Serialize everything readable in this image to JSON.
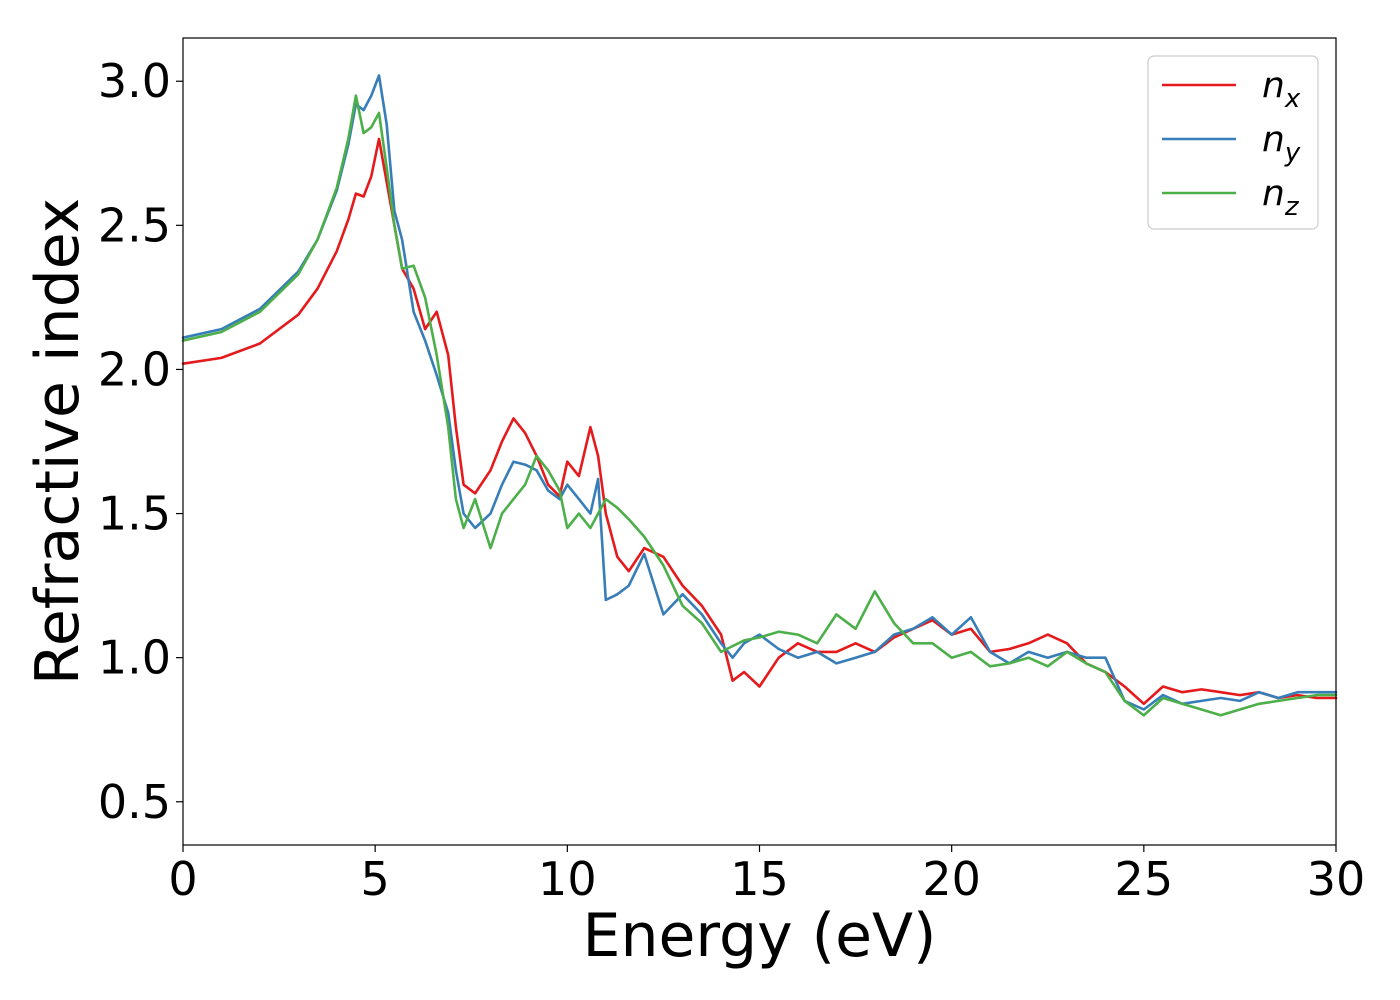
{
  "chart_data": {
    "type": "line",
    "xlabel": "Energy (eV)",
    "ylabel": "Refractive index",
    "xlim": [
      0,
      30
    ],
    "ylim": [
      0.35,
      3.15
    ],
    "xticks": [
      "0",
      "5",
      "10",
      "15",
      "20",
      "25",
      "30"
    ],
    "yticks": [
      "0.5",
      "1.0",
      "1.5",
      "2.0",
      "2.5",
      "3.0"
    ],
    "grid": false,
    "legend_position": "top-right",
    "series": [
      {
        "name": "n",
        "subscript": "x",
        "color": "#e41a1c",
        "x": [
          0,
          1,
          2,
          3,
          3.5,
          4,
          4.3,
          4.5,
          4.7,
          4.9,
          5.1,
          5.3,
          5.5,
          5.7,
          6.0,
          6.3,
          6.6,
          6.9,
          7.1,
          7.3,
          7.6,
          8.0,
          8.3,
          8.6,
          8.9,
          9.2,
          9.5,
          9.8,
          10.0,
          10.3,
          10.6,
          10.8,
          11.0,
          11.3,
          11.6,
          12.0,
          12.5,
          13.0,
          13.5,
          14.0,
          14.3,
          14.6,
          15.0,
          15.5,
          16.0,
          16.5,
          17.0,
          17.5,
          18.0,
          18.5,
          19.0,
          19.5,
          20.0,
          20.5,
          21.0,
          21.5,
          22.0,
          22.5,
          23.0,
          23.5,
          24.0,
          24.5,
          25.0,
          25.5,
          26.0,
          26.5,
          27.0,
          27.5,
          28.0,
          28.5,
          29.0,
          29.5,
          30.0
        ],
        "y": [
          2.02,
          2.04,
          2.09,
          2.19,
          2.28,
          2.41,
          2.52,
          2.61,
          2.6,
          2.67,
          2.8,
          2.65,
          2.5,
          2.35,
          2.28,
          2.14,
          2.2,
          2.05,
          1.8,
          1.6,
          1.57,
          1.65,
          1.75,
          1.83,
          1.78,
          1.7,
          1.6,
          1.56,
          1.68,
          1.63,
          1.8,
          1.7,
          1.5,
          1.35,
          1.3,
          1.38,
          1.35,
          1.25,
          1.18,
          1.08,
          0.92,
          0.95,
          0.9,
          1.0,
          1.05,
          1.02,
          1.02,
          1.05,
          1.02,
          1.07,
          1.1,
          1.13,
          1.08,
          1.1,
          1.02,
          1.03,
          1.05,
          1.08,
          1.05,
          0.98,
          0.95,
          0.9,
          0.84,
          0.9,
          0.88,
          0.89,
          0.88,
          0.87,
          0.88,
          0.86,
          0.87,
          0.86,
          0.86
        ]
      },
      {
        "name": "n",
        "subscript": "y",
        "color": "#377eb8",
        "x": [
          0,
          1,
          2,
          3,
          3.5,
          4,
          4.3,
          4.5,
          4.7,
          4.9,
          5.1,
          5.3,
          5.5,
          5.7,
          6.0,
          6.3,
          6.6,
          6.9,
          7.1,
          7.3,
          7.6,
          8.0,
          8.3,
          8.6,
          8.9,
          9.2,
          9.5,
          9.8,
          10.0,
          10.3,
          10.6,
          10.8,
          11.0,
          11.3,
          11.6,
          12.0,
          12.5,
          13.0,
          13.5,
          14.0,
          14.3,
          14.6,
          15.0,
          15.5,
          16.0,
          16.5,
          17.0,
          17.5,
          18.0,
          18.5,
          19.0,
          19.5,
          20.0,
          20.5,
          21.0,
          21.5,
          22.0,
          22.5,
          23.0,
          23.5,
          24.0,
          24.5,
          25.0,
          25.5,
          26.0,
          26.5,
          27.0,
          27.5,
          28.0,
          28.5,
          29.0,
          29.5,
          30.0
        ],
        "y": [
          2.11,
          2.14,
          2.21,
          2.34,
          2.45,
          2.62,
          2.78,
          2.92,
          2.9,
          2.95,
          3.02,
          2.85,
          2.55,
          2.45,
          2.2,
          2.1,
          1.98,
          1.85,
          1.65,
          1.5,
          1.45,
          1.5,
          1.6,
          1.68,
          1.67,
          1.65,
          1.58,
          1.55,
          1.6,
          1.55,
          1.5,
          1.62,
          1.2,
          1.22,
          1.25,
          1.36,
          1.15,
          1.22,
          1.15,
          1.05,
          1.0,
          1.05,
          1.08,
          1.03,
          1.0,
          1.02,
          0.98,
          1.0,
          1.02,
          1.08,
          1.1,
          1.14,
          1.08,
          1.14,
          1.02,
          0.98,
          1.02,
          1.0,
          1.02,
          1.0,
          1.0,
          0.85,
          0.82,
          0.87,
          0.84,
          0.85,
          0.86,
          0.85,
          0.88,
          0.86,
          0.88,
          0.88,
          0.88
        ]
      },
      {
        "name": "n",
        "subscript": "z",
        "color": "#4daf4a",
        "x": [
          0,
          1,
          2,
          3,
          3.5,
          4,
          4.3,
          4.5,
          4.7,
          4.9,
          5.1,
          5.3,
          5.5,
          5.7,
          6.0,
          6.3,
          6.6,
          6.9,
          7.1,
          7.3,
          7.6,
          8.0,
          8.3,
          8.6,
          8.9,
          9.2,
          9.5,
          9.8,
          10.0,
          10.3,
          10.6,
          10.8,
          11.0,
          11.3,
          11.6,
          12.0,
          12.5,
          13.0,
          13.5,
          14.0,
          14.3,
          14.6,
          15.0,
          15.5,
          16.0,
          16.5,
          17.0,
          17.5,
          18.0,
          18.5,
          19.0,
          19.5,
          20.0,
          20.5,
          21.0,
          21.5,
          22.0,
          22.5,
          23.0,
          23.5,
          24.0,
          24.5,
          25.0,
          25.5,
          26.0,
          26.5,
          27.0,
          27.5,
          28.0,
          28.5,
          29.0,
          29.5,
          30.0
        ],
        "y": [
          2.1,
          2.13,
          2.2,
          2.33,
          2.45,
          2.63,
          2.8,
          2.95,
          2.82,
          2.84,
          2.89,
          2.7,
          2.5,
          2.35,
          2.36,
          2.25,
          2.05,
          1.8,
          1.55,
          1.45,
          1.55,
          1.38,
          1.5,
          1.55,
          1.6,
          1.7,
          1.65,
          1.58,
          1.45,
          1.5,
          1.45,
          1.5,
          1.55,
          1.52,
          1.48,
          1.42,
          1.32,
          1.18,
          1.12,
          1.02,
          1.04,
          1.06,
          1.07,
          1.09,
          1.08,
          1.05,
          1.15,
          1.1,
          1.23,
          1.12,
          1.05,
          1.05,
          1.0,
          1.02,
          0.97,
          0.98,
          1.0,
          0.97,
          1.02,
          0.98,
          0.95,
          0.85,
          0.8,
          0.86,
          0.84,
          0.82,
          0.8,
          0.82,
          0.84,
          0.85,
          0.86,
          0.87,
          0.87
        ]
      }
    ]
  }
}
